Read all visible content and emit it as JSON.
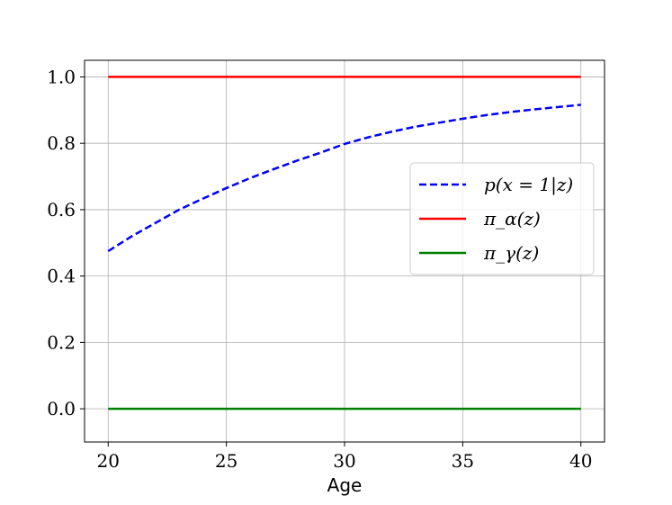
{
  "chart_data": {
    "type": "line",
    "title": "",
    "xlabel": "Age",
    "ylabel": "",
    "xlim": [
      19,
      41
    ],
    "ylim": [
      -0.1,
      1.05
    ],
    "xticks": [
      20,
      25,
      30,
      35,
      40
    ],
    "xtick_labels": [
      "20",
      "25",
      "30",
      "35",
      "40"
    ],
    "yticks": [
      0.0,
      0.2,
      0.4,
      0.6,
      0.8,
      1.0
    ],
    "ytick_labels": [
      "0.0",
      "0.2",
      "0.4",
      "0.6",
      "0.8",
      "1.0"
    ],
    "grid": true,
    "legend_position": "center-right",
    "series": [
      {
        "name": "p(x = 1|z)",
        "color": "#0000ff",
        "style": "dashed",
        "x": [
          20,
          21,
          22,
          23,
          24,
          25,
          26,
          27,
          28,
          29,
          30,
          31,
          32,
          33,
          34,
          35,
          36,
          37,
          38,
          39,
          40
        ],
        "y": [
          0.475,
          0.52,
          0.56,
          0.6,
          0.633,
          0.665,
          0.695,
          0.722,
          0.748,
          0.772,
          0.798,
          0.818,
          0.835,
          0.85,
          0.862,
          0.874,
          0.885,
          0.894,
          0.902,
          0.909,
          0.916
        ]
      },
      {
        "name": "π_α(z)",
        "color": "#ff0000",
        "style": "solid",
        "x": [
          20,
          40
        ],
        "y": [
          1.0,
          1.0
        ]
      },
      {
        "name": "π_γ(z)",
        "color": "#008000",
        "style": "solid",
        "x": [
          20,
          40
        ],
        "y": [
          0.0,
          0.0
        ]
      }
    ]
  }
}
